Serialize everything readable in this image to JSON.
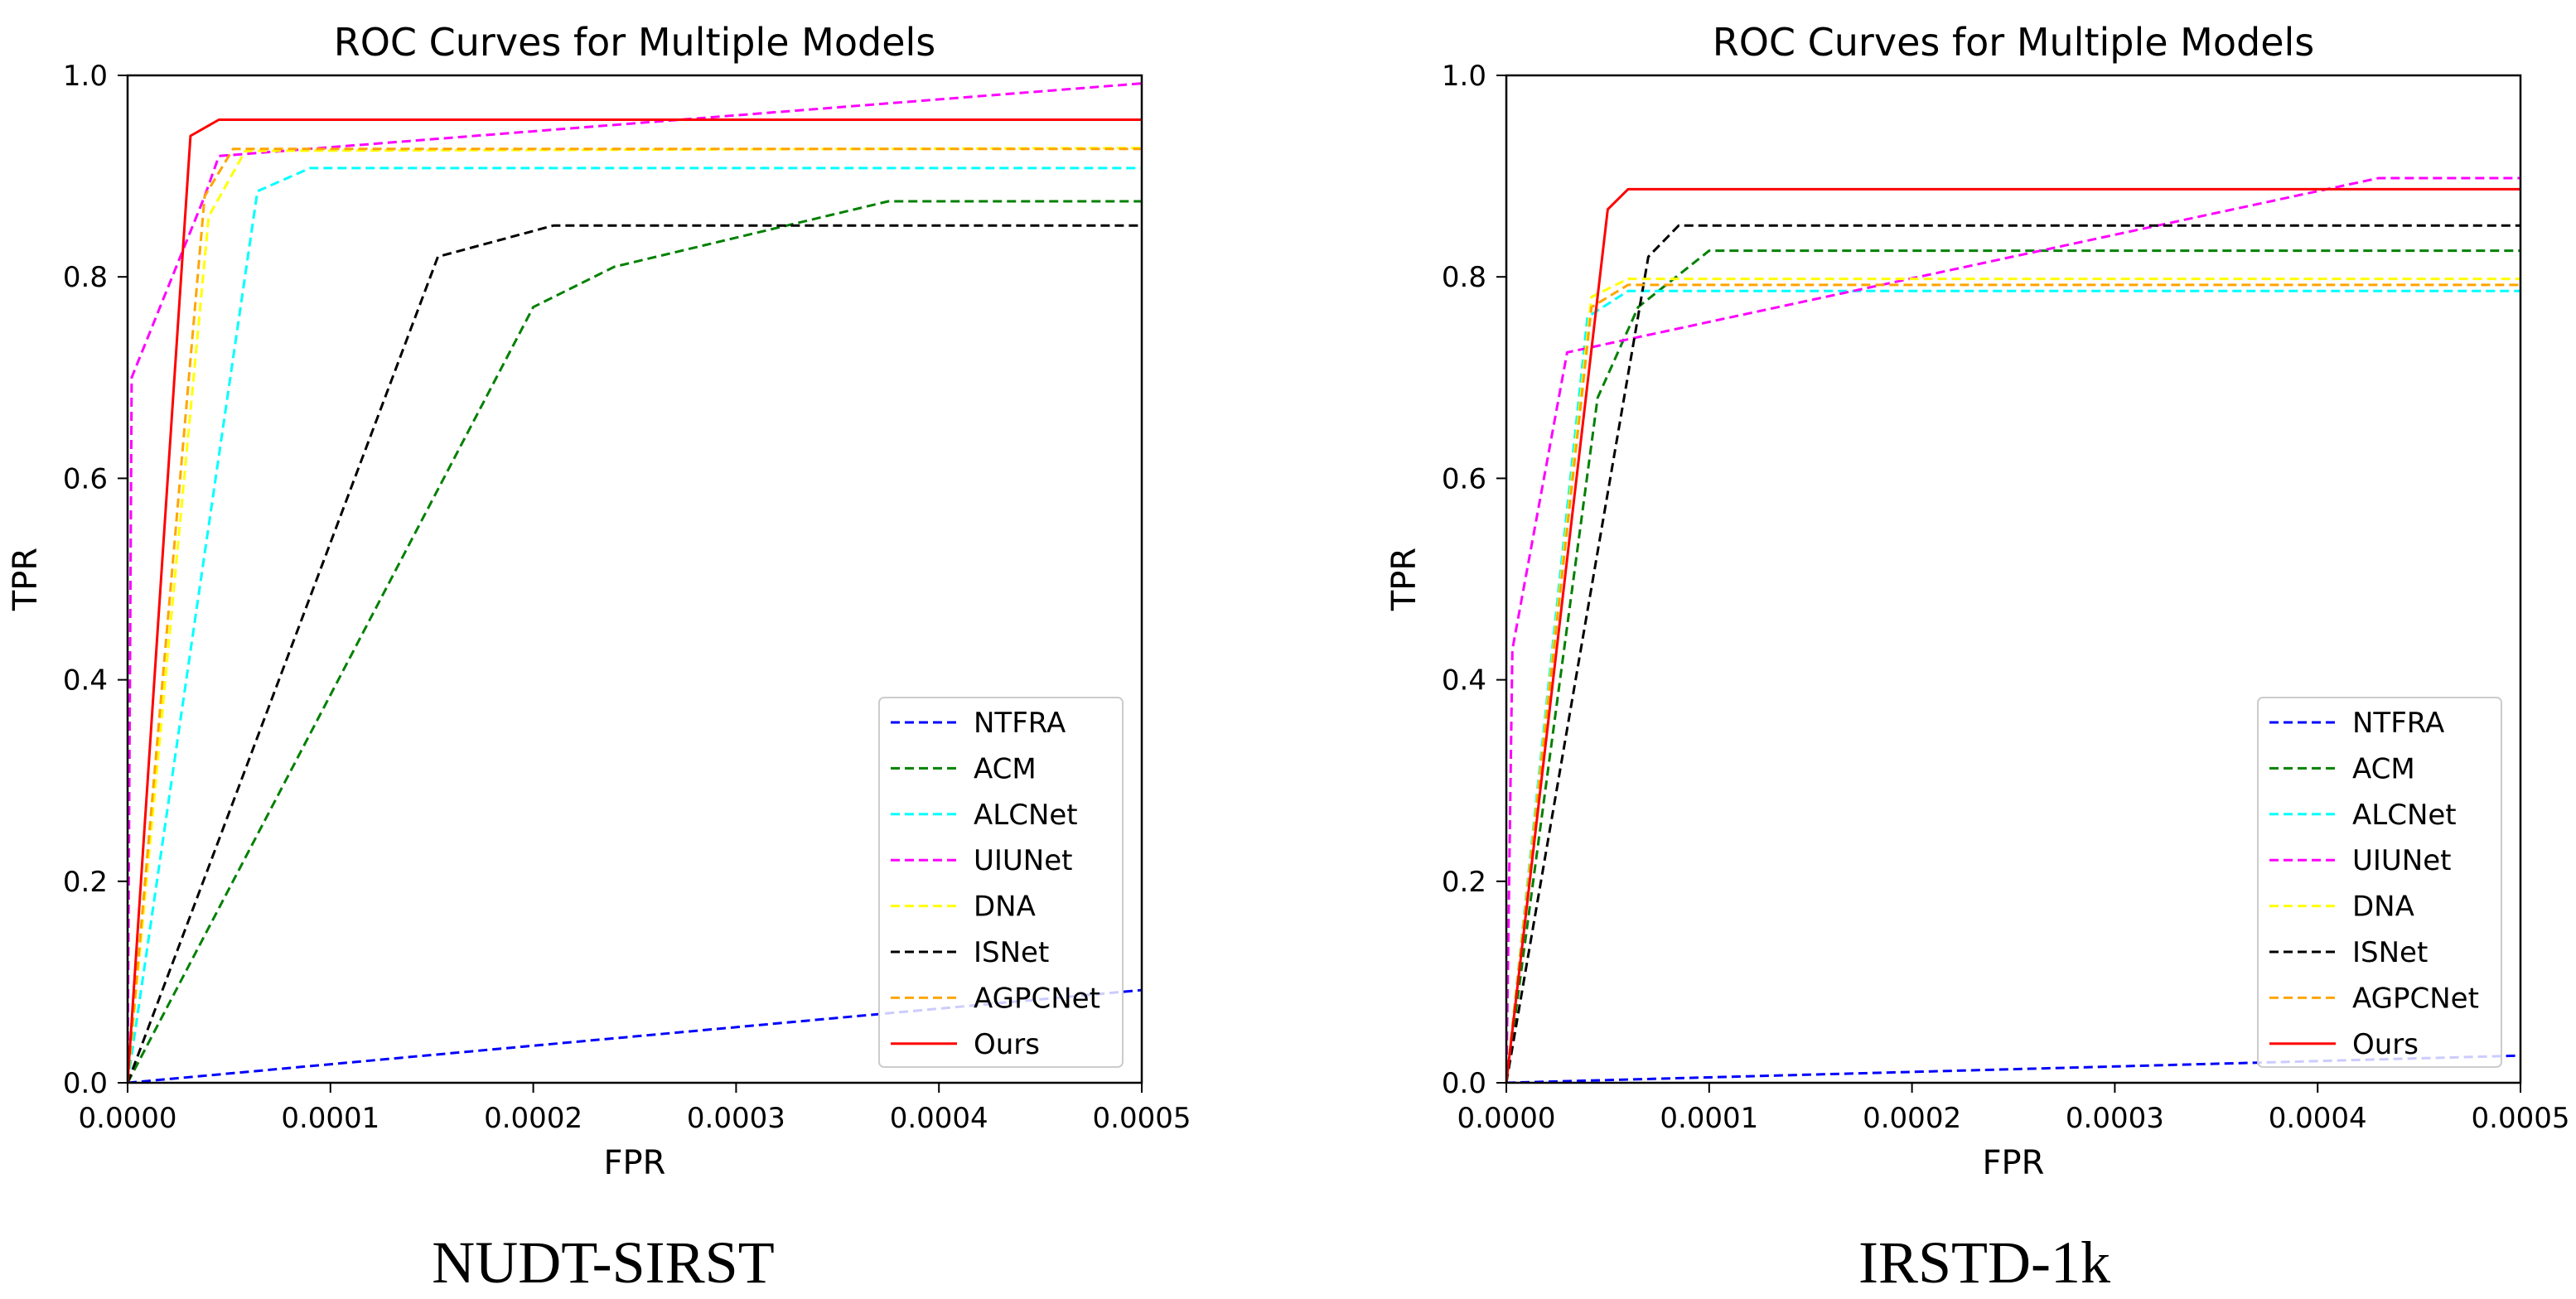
{
  "chart_data": [
    {
      "type": "line",
      "title": "ROC Curves for Multiple Models",
      "xlabel": "FPR",
      "ylabel": "TPR",
      "xlim": [
        0,
        0.0005
      ],
      "ylim": [
        0,
        1.0
      ],
      "xticks": [
        "0.0000",
        "0.0001",
        "0.0002",
        "0.0003",
        "0.0004",
        "0.0005"
      ],
      "yticks": [
        "0.0",
        "0.2",
        "0.4",
        "0.6",
        "0.8",
        "1.0"
      ],
      "legend_position": "lower-right",
      "caption": "NUDT-SIRST",
      "series": [
        {
          "name": "NTFRA",
          "color": "#0000ff",
          "dashed": true,
          "x": [
            0,
            0.0005
          ],
          "y": [
            0,
            0.092
          ]
        },
        {
          "name": "ACM",
          "color": "#008000",
          "dashed": true,
          "x": [
            0,
            0.0002,
            0.00024,
            0.000375,
            0.0005
          ],
          "y": [
            0,
            0.77,
            0.81,
            0.875,
            0.875
          ]
        },
        {
          "name": "ALCNet",
          "color": "#00ffff",
          "dashed": true,
          "x": [
            0,
            6.4e-05,
            9e-05,
            0.0005
          ],
          "y": [
            0,
            0.885,
            0.908,
            0.908
          ]
        },
        {
          "name": "UIUNet",
          "color": "#ff00ff",
          "dashed": true,
          "x": [
            0,
            2e-06,
            3.8e-05,
            4.5e-05,
            0.0005
          ],
          "y": [
            0,
            0.7,
            0.88,
            0.92,
            0.992
          ]
        },
        {
          "name": "DNA",
          "color": "#ffff00",
          "dashed": true,
          "x": [
            0,
            4e-05,
            5.8e-05,
            0.0005
          ],
          "y": [
            0,
            0.86,
            0.925,
            0.928
          ]
        },
        {
          "name": "ISNet",
          "color": "#000000",
          "dashed": true,
          "x": [
            0,
            0.000153,
            0.00021,
            0.0005
          ],
          "y": [
            0,
            0.82,
            0.851,
            0.851
          ]
        },
        {
          "name": "AGPCNet",
          "color": "#ffa500",
          "dashed": true,
          "x": [
            0,
            3.8e-05,
            5.2e-05,
            0.0005
          ],
          "y": [
            0,
            0.88,
            0.927,
            0.927
          ]
        },
        {
          "name": "Ours",
          "color": "#ff0000",
          "dashed": false,
          "x": [
            0,
            3.1e-05,
            4.5e-05,
            0.0005
          ],
          "y": [
            0,
            0.94,
            0.956,
            0.956
          ]
        }
      ]
    },
    {
      "type": "line",
      "title": "ROC Curves for Multiple Models",
      "xlabel": "FPR",
      "ylabel": "TPR",
      "xlim": [
        0,
        0.0005
      ],
      "ylim": [
        0,
        1.0
      ],
      "xticks": [
        "0.0000",
        "0.0001",
        "0.0002",
        "0.0003",
        "0.0004",
        "0.0005"
      ],
      "yticks": [
        "0.0",
        "0.2",
        "0.4",
        "0.6",
        "0.8",
        "1.0"
      ],
      "legend_position": "lower-right",
      "caption": "IRSTD-1k",
      "series": [
        {
          "name": "NTFRA",
          "color": "#0000ff",
          "dashed": true,
          "x": [
            0,
            0.0005
          ],
          "y": [
            0,
            0.027
          ]
        },
        {
          "name": "ACM",
          "color": "#008000",
          "dashed": true,
          "x": [
            0,
            4.5e-05,
            6.5e-05,
            0.0001,
            0.0005
          ],
          "y": [
            0,
            0.68,
            0.77,
            0.826,
            0.826
          ]
        },
        {
          "name": "ALCNet",
          "color": "#00ffff",
          "dashed": true,
          "x": [
            0,
            4e-05,
            6e-05,
            0.0005
          ],
          "y": [
            0,
            0.76,
            0.786,
            0.786
          ]
        },
        {
          "name": "UIUNet",
          "color": "#ff00ff",
          "dashed": true,
          "x": [
            0,
            3e-06,
            3e-05,
            0.00043,
            0.0005
          ],
          "y": [
            0,
            0.43,
            0.725,
            0.898,
            0.898
          ]
        },
        {
          "name": "DNA",
          "color": "#ffff00",
          "dashed": true,
          "x": [
            0,
            4.2e-05,
            6e-05,
            0.0005
          ],
          "y": [
            0,
            0.78,
            0.798,
            0.798
          ]
        },
        {
          "name": "ISNet",
          "color": "#000000",
          "dashed": true,
          "x": [
            0,
            7e-05,
            8.5e-05,
            0.0005
          ],
          "y": [
            0,
            0.82,
            0.851,
            0.851
          ]
        },
        {
          "name": "AGPCNet",
          "color": "#ffa500",
          "dashed": true,
          "x": [
            0,
            4.2e-05,
            6e-05,
            0.0005
          ],
          "y": [
            0,
            0.77,
            0.792,
            0.792
          ]
        },
        {
          "name": "Ours",
          "color": "#ff0000",
          "dashed": false,
          "x": [
            0,
            5e-05,
            6e-05,
            0.0005
          ],
          "y": [
            0,
            0.867,
            0.887,
            0.887
          ]
        }
      ]
    }
  ]
}
